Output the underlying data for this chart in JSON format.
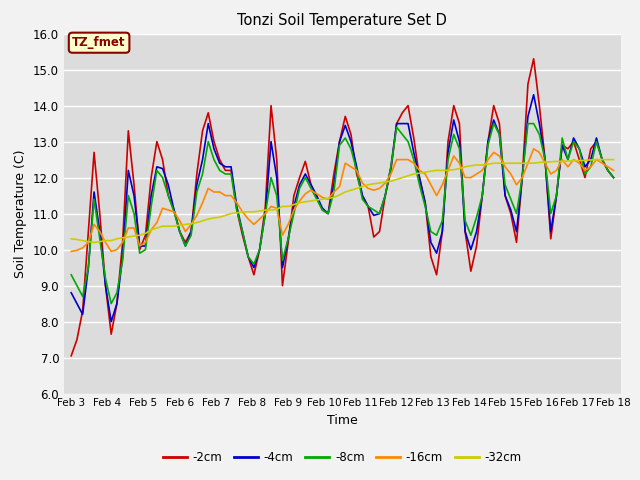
{
  "title": "Tonzi Soil Temperature Set D",
  "xlabel": "Time",
  "ylabel": "Soil Temperature (C)",
  "ylim": [
    6.0,
    16.0
  ],
  "yticks": [
    6.0,
    7.0,
    8.0,
    9.0,
    10.0,
    11.0,
    12.0,
    13.0,
    14.0,
    15.0,
    16.0
  ],
  "x_labels": [
    "Feb 3",
    "Feb 4",
    "Feb 5",
    "Feb 6",
    "Feb 7",
    "Feb 8",
    "Feb 9",
    "Feb 10",
    "Feb 11",
    "Feb 12",
    "Feb 13",
    "Feb 14",
    "Feb 15",
    "Feb 16",
    "Feb 17",
    "Feb 18"
  ],
  "annotation_label": "TZ_fmet",
  "annotation_color": "#8B0000",
  "annotation_bg": "#FFFFCC",
  "plot_bg_color": "#DCDCDC",
  "fig_bg_color": "#F2F2F2",
  "grid_color": "#FFFFFF",
  "series": [
    {
      "label": "-2cm",
      "color": "#CC0000",
      "data": [
        7.05,
        7.5,
        8.3,
        10.5,
        12.7,
        11.0,
        9.0,
        7.65,
        8.5,
        10.2,
        13.3,
        11.8,
        10.0,
        10.4,
        12.0,
        13.0,
        12.5,
        11.5,
        11.1,
        10.5,
        10.2,
        10.5,
        12.1,
        13.3,
        13.8,
        13.0,
        12.5,
        12.2,
        12.2,
        11.1,
        10.4,
        9.8,
        9.3,
        10.0,
        11.2,
        14.0,
        12.5,
        9.0,
        10.2,
        11.5,
        12.0,
        12.45,
        11.8,
        11.45,
        11.1,
        11.0,
        12.1,
        13.0,
        13.7,
        13.2,
        12.1,
        11.5,
        11.2,
        10.35,
        10.5,
        11.5,
        12.2,
        13.5,
        13.8,
        14.0,
        13.1,
        12.0,
        11.3,
        9.8,
        9.3,
        10.5,
        13.0,
        14.0,
        13.5,
        10.5,
        9.4,
        10.1,
        11.5,
        13.0,
        14.0,
        13.5,
        11.5,
        11.0,
        10.2,
        12.0,
        14.6,
        15.3,
        14.0,
        12.5,
        10.3,
        11.5,
        12.9,
        12.8,
        13.0,
        12.5,
        12.0,
        12.8,
        13.0,
        12.5,
        12.2,
        12.0
      ]
    },
    {
      "label": "-4cm",
      "color": "#0000CC",
      "data": [
        8.8,
        8.5,
        8.2,
        9.5,
        11.6,
        10.5,
        9.0,
        8.0,
        8.5,
        9.8,
        12.2,
        11.5,
        10.1,
        10.1,
        11.5,
        12.3,
        12.25,
        11.8,
        11.1,
        10.5,
        10.1,
        10.5,
        11.8,
        12.5,
        13.5,
        12.8,
        12.4,
        12.3,
        12.3,
        11.2,
        10.5,
        9.8,
        9.5,
        10.0,
        11.0,
        13.0,
        12.0,
        9.5,
        10.3,
        11.2,
        11.8,
        12.1,
        11.8,
        11.5,
        11.15,
        11.0,
        11.8,
        13.0,
        13.45,
        13.0,
        12.3,
        11.5,
        11.2,
        10.95,
        11.0,
        11.5,
        12.3,
        13.5,
        13.5,
        13.5,
        12.7,
        12.0,
        11.3,
        10.2,
        9.9,
        10.5,
        12.7,
        13.6,
        13.0,
        10.5,
        10.0,
        10.5,
        11.5,
        13.0,
        13.6,
        13.2,
        11.5,
        11.1,
        10.5,
        12.0,
        13.7,
        14.3,
        13.5,
        12.5,
        10.5,
        11.5,
        12.9,
        12.5,
        13.1,
        12.8,
        12.3,
        12.5,
        13.1,
        12.5,
        12.2,
        12.0
      ]
    },
    {
      "label": "-8cm",
      "color": "#00AA00",
      "data": [
        9.3,
        9.0,
        8.7,
        9.5,
        11.4,
        10.3,
        9.2,
        8.5,
        8.8,
        9.7,
        11.5,
        11.0,
        9.9,
        10.0,
        11.2,
        12.2,
        12.0,
        11.5,
        11.05,
        10.5,
        10.1,
        10.4,
        11.6,
        12.1,
        13.0,
        12.5,
        12.2,
        12.1,
        12.1,
        11.1,
        10.5,
        9.8,
        9.6,
        10.0,
        11.0,
        12.0,
        11.5,
        9.7,
        10.3,
        11.0,
        11.7,
        12.0,
        11.7,
        11.4,
        11.1,
        11.0,
        11.6,
        12.9,
        13.1,
        12.8,
        12.2,
        11.4,
        11.2,
        11.1,
        11.0,
        11.5,
        12.3,
        13.4,
        13.2,
        13.0,
        12.5,
        11.8,
        11.2,
        10.5,
        10.4,
        10.8,
        12.5,
        13.2,
        12.8,
        10.8,
        10.4,
        10.9,
        11.5,
        12.9,
        13.5,
        13.2,
        11.8,
        11.4,
        11.0,
        12.0,
        13.5,
        13.5,
        13.2,
        12.5,
        11.0,
        11.5,
        13.1,
        12.5,
        13.0,
        12.8,
        12.1,
        12.3,
        13.0,
        12.5,
        12.2,
        12.0
      ]
    },
    {
      "label": "-16cm",
      "color": "#FF8800",
      "data": [
        9.95,
        9.98,
        10.05,
        10.2,
        10.7,
        10.5,
        10.2,
        9.95,
        10.0,
        10.2,
        10.6,
        10.6,
        10.1,
        10.2,
        10.55,
        10.75,
        11.15,
        11.1,
        11.05,
        10.8,
        10.5,
        10.7,
        10.95,
        11.3,
        11.7,
        11.6,
        11.6,
        11.5,
        11.5,
        11.3,
        11.05,
        10.85,
        10.7,
        10.85,
        11.0,
        11.2,
        11.15,
        10.4,
        10.7,
        11.1,
        11.35,
        11.55,
        11.65,
        11.55,
        11.45,
        11.4,
        11.6,
        11.75,
        12.4,
        12.3,
        12.2,
        11.85,
        11.7,
        11.65,
        11.7,
        11.85,
        12.1,
        12.5,
        12.5,
        12.5,
        12.4,
        12.2,
        12.1,
        11.8,
        11.5,
        11.8,
        12.2,
        12.6,
        12.4,
        12.0,
        12.0,
        12.1,
        12.2,
        12.5,
        12.7,
        12.6,
        12.3,
        12.1,
        11.8,
        12.0,
        12.4,
        12.8,
        12.7,
        12.4,
        12.1,
        12.2,
        12.5,
        12.3,
        12.5,
        12.4,
        12.2,
        12.3,
        12.5,
        12.4,
        12.3,
        12.2
      ]
    },
    {
      "label": "-32cm",
      "color": "#CCCC00",
      "data": [
        10.3,
        10.28,
        10.25,
        10.22,
        10.2,
        10.22,
        10.25,
        10.25,
        10.3,
        10.33,
        10.35,
        10.38,
        10.4,
        10.45,
        10.55,
        10.6,
        10.65,
        10.65,
        10.65,
        10.68,
        10.7,
        10.72,
        10.75,
        10.8,
        10.85,
        10.88,
        10.9,
        10.95,
        11.0,
        11.02,
        11.05,
        11.05,
        11.05,
        11.07,
        11.1,
        11.1,
        11.12,
        11.2,
        11.2,
        11.25,
        11.3,
        11.33,
        11.35,
        11.38,
        11.4,
        11.42,
        11.45,
        11.52,
        11.6,
        11.65,
        11.7,
        11.75,
        11.8,
        11.83,
        11.85,
        11.88,
        11.9,
        11.95,
        12.0,
        12.05,
        12.1,
        12.12,
        12.15,
        12.18,
        12.2,
        12.2,
        12.2,
        12.22,
        12.25,
        12.3,
        12.33,
        12.35,
        12.35,
        12.37,
        12.4,
        12.4,
        12.4,
        12.4,
        12.4,
        12.4,
        12.4,
        12.4,
        12.42,
        12.43,
        12.44,
        12.45,
        12.45,
        12.46,
        12.47,
        12.47,
        12.48,
        12.49,
        12.5,
        12.5,
        12.5,
        12.5
      ]
    }
  ]
}
